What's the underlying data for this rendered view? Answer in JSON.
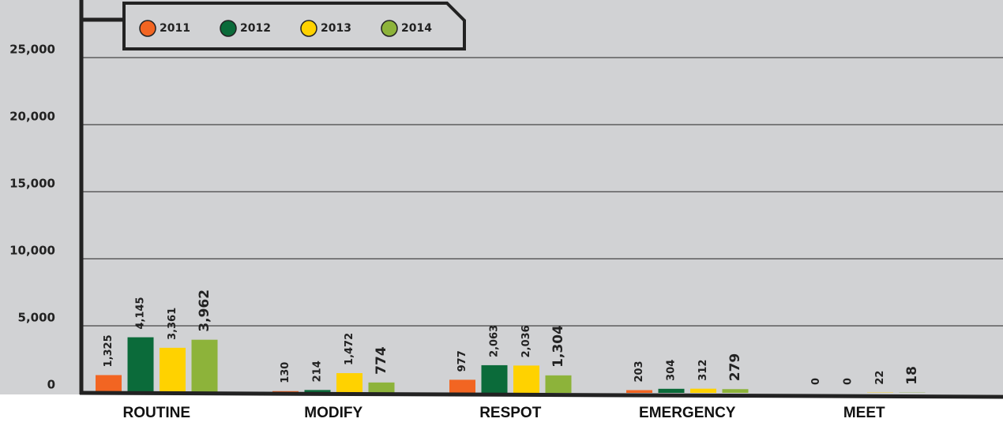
{
  "chart_data": {
    "type": "bar",
    "categories": [
      "ROUTINE",
      "MODIFY",
      "RESPOT",
      "EMERGENCY",
      "MEET"
    ],
    "series": [
      {
        "name": "2011",
        "color": "#f26522",
        "values": [
          1325,
          130,
          977,
          203,
          0
        ],
        "value_labels": [
          "1,325",
          "130",
          "977",
          "203",
          "0"
        ]
      },
      {
        "name": "2012",
        "color": "#0b6b3a",
        "values": [
          4145,
          214,
          2063,
          304,
          0
        ],
        "value_labels": [
          "4,145",
          "214",
          "2,063",
          "304",
          "0"
        ]
      },
      {
        "name": "2013",
        "color": "#ffd200",
        "values": [
          3361,
          1472,
          2036,
          312,
          22
        ],
        "value_labels": [
          "3,361",
          "1,472",
          "2,036",
          "312",
          "22"
        ]
      },
      {
        "name": "2014",
        "color": "#8db33a",
        "values": [
          3962,
          774,
          1304,
          279,
          18
        ],
        "value_labels": [
          "3,962",
          "774",
          "1,304",
          "279",
          "18"
        ]
      }
    ],
    "ylim": [
      0,
      29000
    ],
    "yticks": [
      0,
      {
        "value": 5000,
        "label": "5,000"
      },
      {
        "value": 10000,
        "label": "10,000"
      },
      {
        "value": 15000,
        "label": "15,000"
      },
      {
        "value": 20000,
        "label": "20,000"
      },
      {
        "value": 25000,
        "label": "25,000"
      }
    ],
    "grid": true
  }
}
